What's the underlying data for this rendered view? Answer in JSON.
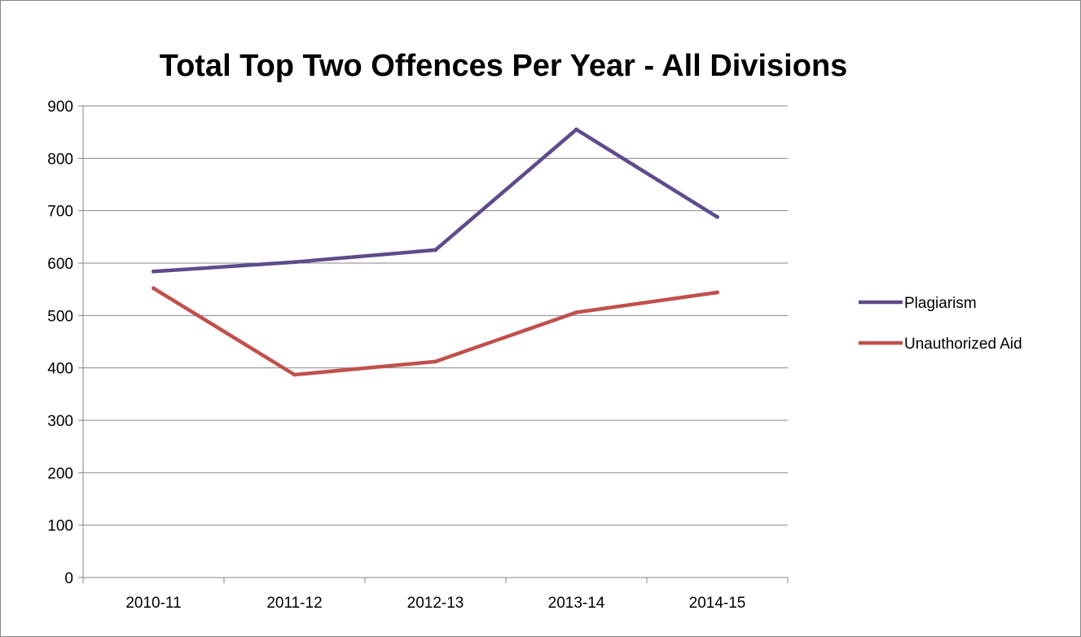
{
  "chart_data": {
    "type": "line",
    "title": "Total Top Two Offences Per Year - All Divisions",
    "xlabel": "",
    "ylabel": "",
    "categories": [
      "2010-11",
      "2011-12",
      "2012-13",
      "2013-14",
      "2014-15"
    ],
    "ylim": [
      0,
      900
    ],
    "yticks": [
      0,
      100,
      200,
      300,
      400,
      500,
      600,
      700,
      800,
      900
    ],
    "grid": true,
    "legend_position": "right",
    "series": [
      {
        "name": "Plagiarism",
        "color": "#5f4b8b",
        "values": [
          584,
          602,
          625,
          855,
          688
        ]
      },
      {
        "name": "Unauthorized Aid",
        "color": "#c0504d",
        "values": [
          552,
          387,
          412,
          506,
          544
        ]
      }
    ]
  }
}
